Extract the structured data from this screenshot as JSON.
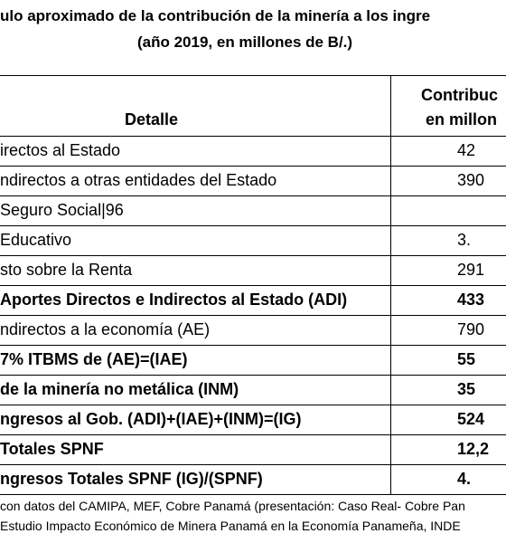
{
  "header": {
    "title": "ulo aproximado de la contribución de la minería a los ingre",
    "subtitle": "(año 2019, en millones de B/.)"
  },
  "table": {
    "columns": [
      "Detalle",
      "Contribuc",
      "en millon"
    ],
    "rows": [
      [
        "irectos al Estado",
        "42"
      ],
      [
        "ndirectos a otras entidades del Estado",
        "390"
      ],
      " Seguro Social|96",
      [
        " Educativo",
        "3."
      ],
      [
        "sto sobre la Renta",
        "291"
      ],
      [
        "Aportes Directos e Indirectos al Estado (ADI)",
        "433"
      ],
      [
        "ndirectos a la economía (AE)",
        "790"
      ],
      [
        "7% ITBMS de (AE)=(IAE)",
        "55"
      ],
      [
        "de la minería no metálica (INM)",
        "35"
      ],
      [
        "ngresos al Gob. (ADI)+(IAE)+(INM)=(IG)",
        "524"
      ],
      [
        "Totales SPNF",
        "12,2"
      ],
      [
        "ngresos Totales SPNF (IG)/(SPNF)",
        "4."
      ]
    ]
  },
  "footnotes": [
    " con datos del CAMIPA, MEF, Cobre Panamá (presentación: Caso Real- Cobre Pan",
    "Estudio Impacto Económico de Minera Panamá en la Economía Panameña, INDE"
  ]
}
